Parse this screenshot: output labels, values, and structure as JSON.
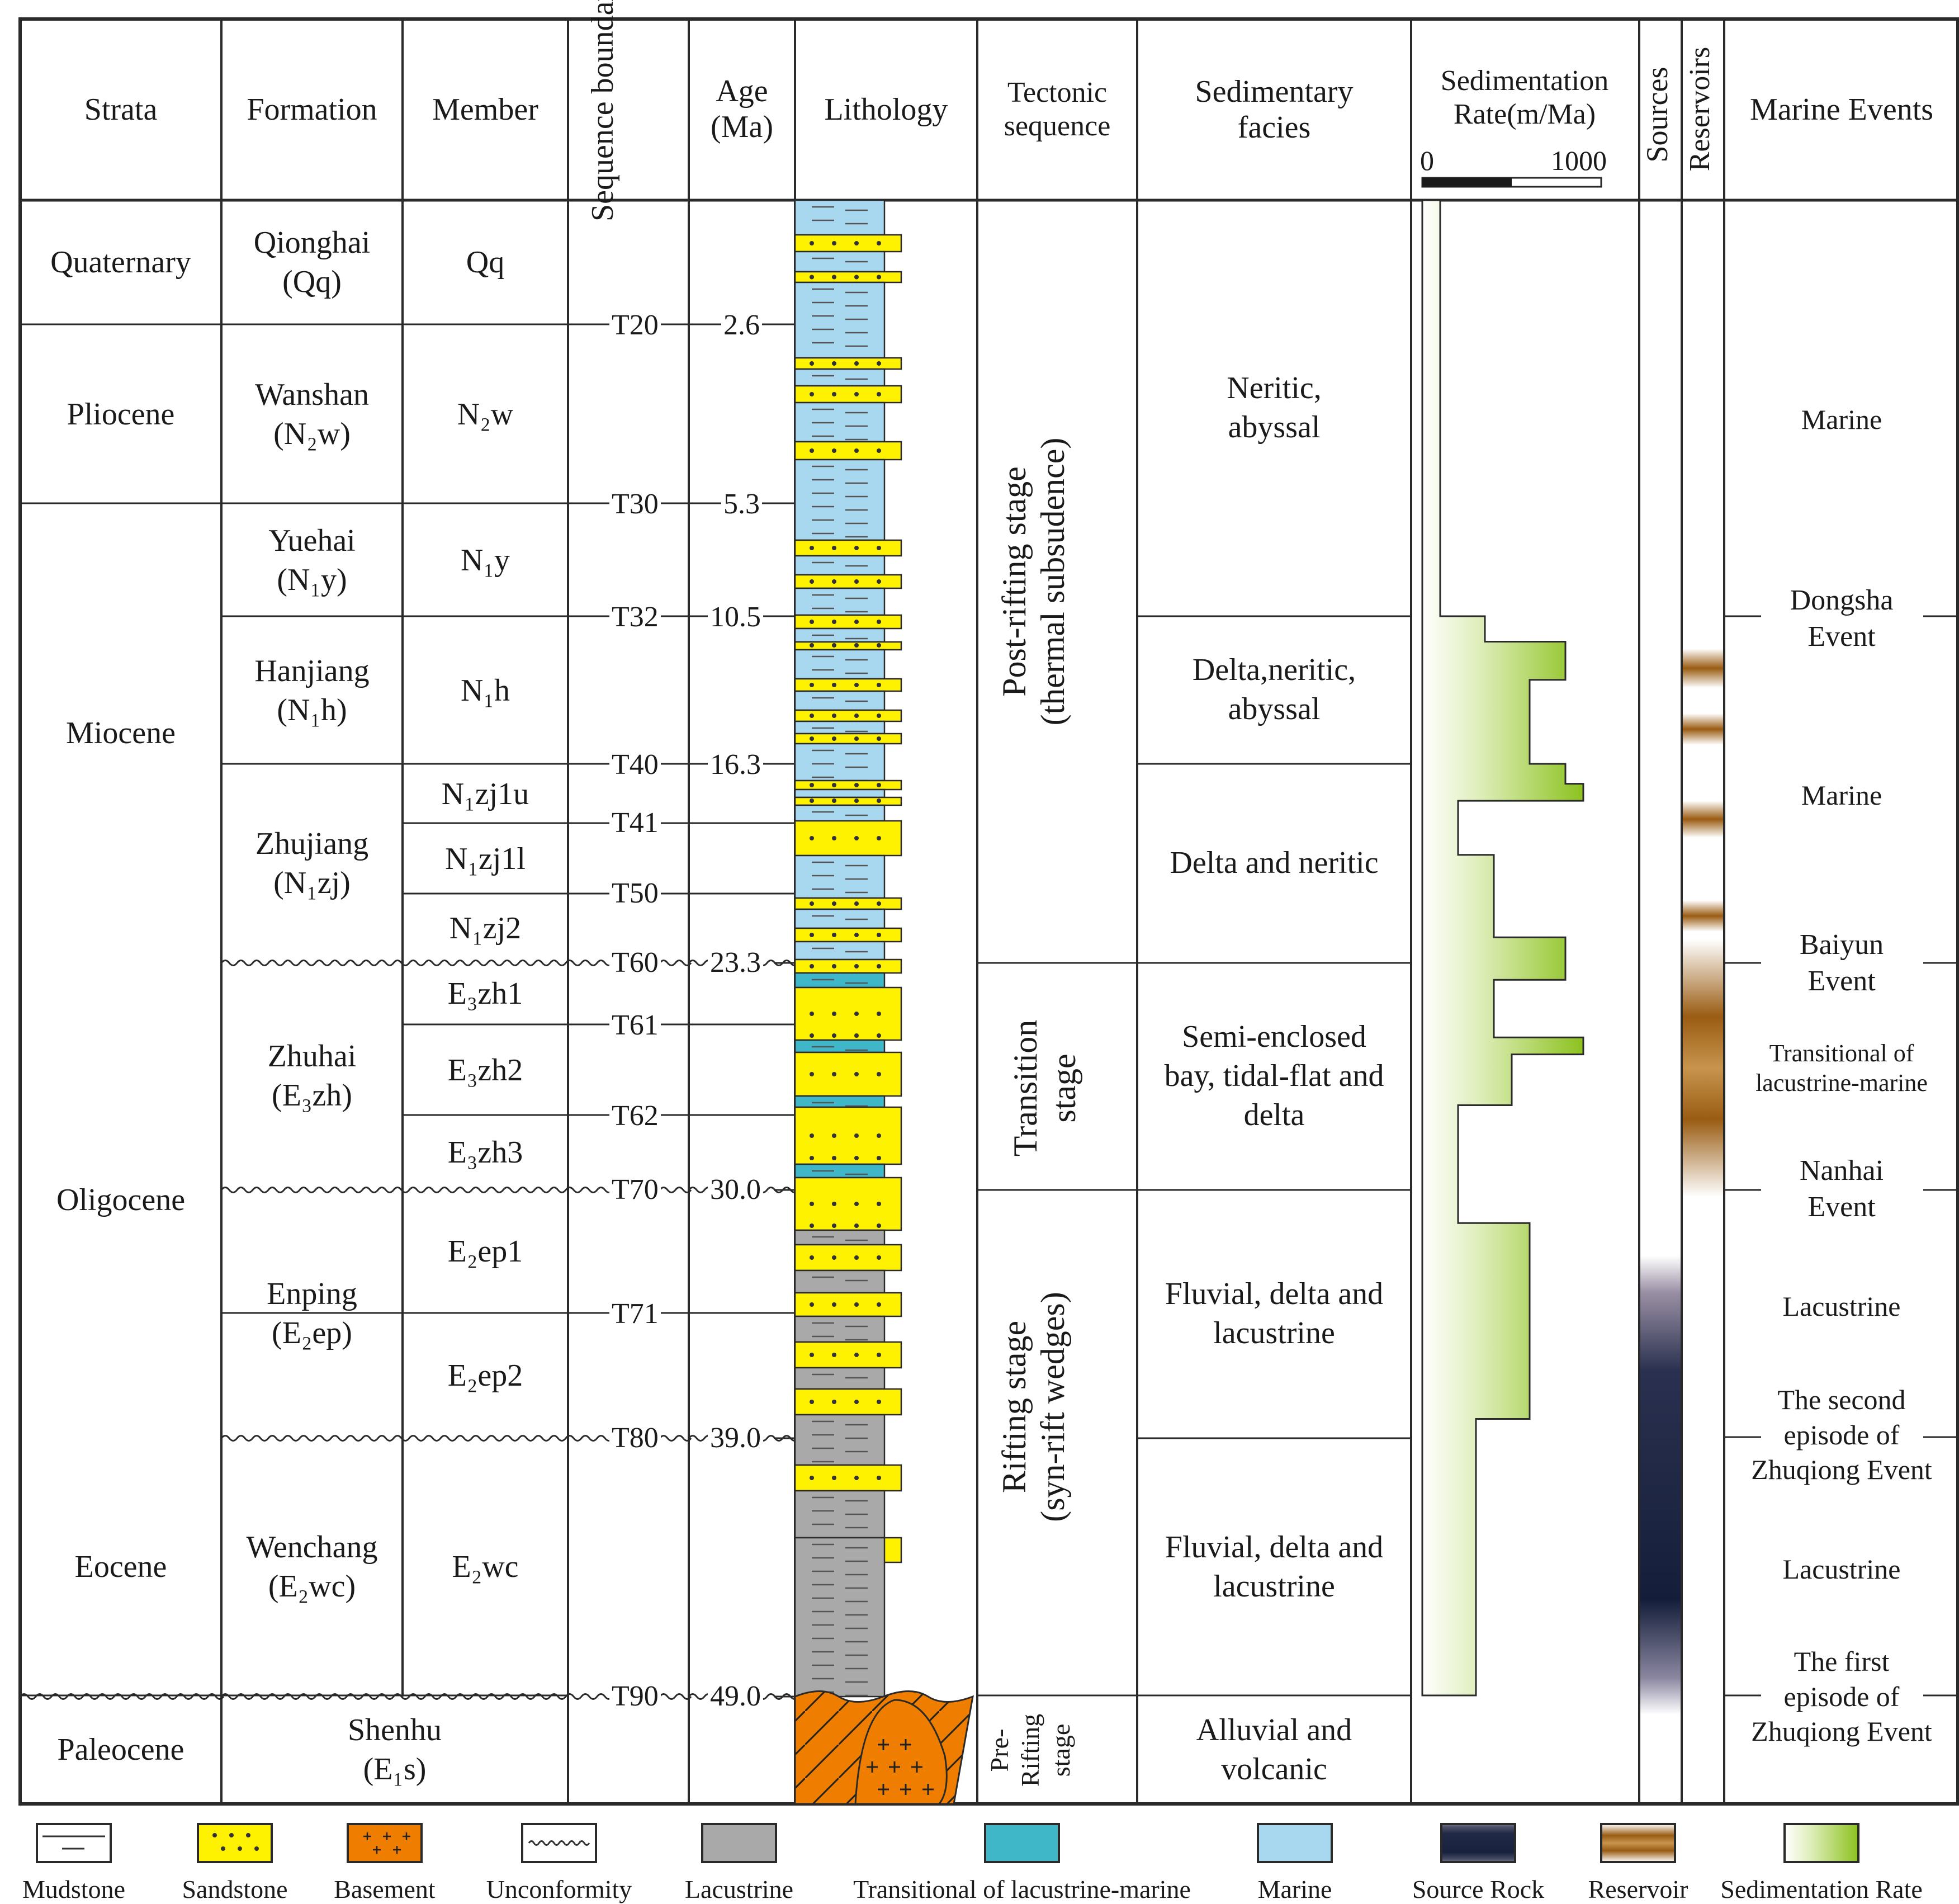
{
  "headers": {
    "strata": "Strata",
    "formation": "Formation",
    "member": "Member",
    "sequence_boundary": "Sequence boundary",
    "age": "Age (Ma)",
    "lithology": "Lithology",
    "tectonic_sequence": "Tectonic sequence",
    "sedimentary_facies": "Sedimentary facies",
    "sedimentation_rate": "Sedimentation Rate(m/Ma)",
    "rate_scale_min": "0",
    "rate_scale_max": "1000",
    "sources": "Sources",
    "reservoirs": "Reservoirs",
    "marine_events": "Marine Events"
  },
  "strata": [
    "Quaternary",
    "Pliocene",
    "Miocene",
    "Oligocene",
    "Eocene",
    "Paleocene"
  ],
  "formations": [
    {
      "name": "Qionghai",
      "code": "(Qq)"
    },
    {
      "name": "Wanshan",
      "code": "(N₂w)"
    },
    {
      "name": "Yuehai",
      "code": "(N₁y)"
    },
    {
      "name": "Hanjiang",
      "code": "(N₁h)"
    },
    {
      "name": "Zhujiang",
      "code": "(N₁zj)"
    },
    {
      "name": "Zhuhai",
      "code": "(E₃zh)"
    },
    {
      "name": "Enping",
      "code": "(E₂ep)"
    },
    {
      "name": "Wenchang",
      "code": "(E₂wc)"
    },
    {
      "name": "Shenhu",
      "code": "(E₁s)"
    }
  ],
  "members": [
    "Qq",
    "N₂w",
    "N₁y",
    "N₁h",
    "N₁zj1u",
    "N₁zj1l",
    "N₁zj2",
    "E₃zh1",
    "E₃zh2",
    "E₃zh3",
    "E₂ep1",
    "E₂ep2",
    "E₂wc"
  ],
  "boundaries": [
    {
      "label": "T20",
      "age": "2.6",
      "unconformity": false
    },
    {
      "label": "T30",
      "age": "5.3",
      "unconformity": false
    },
    {
      "label": "T32",
      "age": "10.5",
      "unconformity": false
    },
    {
      "label": "T40",
      "age": "16.3",
      "unconformity": false
    },
    {
      "label": "T41",
      "age": "",
      "unconformity": false
    },
    {
      "label": "T50",
      "age": "",
      "unconformity": false
    },
    {
      "label": "T60",
      "age": "23.3",
      "unconformity": true
    },
    {
      "label": "T61",
      "age": "",
      "unconformity": false
    },
    {
      "label": "T62",
      "age": "",
      "unconformity": false
    },
    {
      "label": "T70",
      "age": "30.0",
      "unconformity": true
    },
    {
      "label": "T71",
      "age": "",
      "unconformity": false
    },
    {
      "label": "T80",
      "age": "39.0",
      "unconformity": true
    },
    {
      "label": "T90",
      "age": "49.0",
      "unconformity": true
    }
  ],
  "tectonic": [
    {
      "line1": "Post-rifting stage",
      "line2": "(thermal subsudence)"
    },
    {
      "line1": "Transition",
      "line2": "stage"
    },
    {
      "line1": "Rifting stage",
      "line2": "(syn-rift wedges)"
    },
    {
      "line1": "Pre-",
      "line2": "Rifting",
      "line3": "stage"
    }
  ],
  "facies": [
    {
      "lines": [
        "Neritic,",
        "abyssal"
      ]
    },
    {
      "lines": [
        "Delta,neritic,",
        "abyssal"
      ]
    },
    {
      "lines": [
        "Delta and neritic"
      ]
    },
    {
      "lines": [
        "Semi-enclosed",
        "bay, tidal-flat and",
        "delta"
      ]
    },
    {
      "lines": [
        "Fluvial, delta and",
        "lacustrine"
      ]
    },
    {
      "lines": [
        "Fluvial, delta and",
        "lacustrine"
      ]
    },
    {
      "lines": [
        "Alluvial and",
        "volcanic"
      ]
    }
  ],
  "sedimentation_rate_m_per_ma": [
    {
      "from_ma": 0,
      "to_ma": 10.5,
      "rate": 100
    },
    {
      "from_ma": 10.5,
      "to_ma": 11.5,
      "rate": 350
    },
    {
      "from_ma": 11.5,
      "to_ma": 13.0,
      "rate": 800
    },
    {
      "from_ma": 13.0,
      "to_ma": 16.3,
      "rate": 600
    },
    {
      "from_ma": 16.3,
      "to_ma": 17.0,
      "rate": 800
    },
    {
      "from_ma": 17.0,
      "to_ma": 17.6,
      "rate": 900
    },
    {
      "from_ma": 17.6,
      "to_ma": 19.5,
      "rate": 200
    },
    {
      "from_ma": 19.5,
      "to_ma": 22.4,
      "rate": 400
    },
    {
      "from_ma": 22.4,
      "to_ma": 23.8,
      "rate": 800
    },
    {
      "from_ma": 23.8,
      "to_ma": 25.5,
      "rate": 400
    },
    {
      "from_ma": 25.5,
      "to_ma": 26.0,
      "rate": 900
    },
    {
      "from_ma": 26.0,
      "to_ma": 27.5,
      "rate": 500
    },
    {
      "from_ma": 27.5,
      "to_ma": 31.2,
      "rate": 200
    },
    {
      "from_ma": 31.2,
      "to_ma": 38.3,
      "rate": 600
    },
    {
      "from_ma": 38.3,
      "to_ma": 49.0,
      "rate": 300
    }
  ],
  "marine_events": [
    {
      "lines": [
        "Marine"
      ],
      "kind": "label"
    },
    {
      "lines": [
        "Dongsha",
        "Event"
      ],
      "kind": "event"
    },
    {
      "lines": [
        "Marine"
      ],
      "kind": "label"
    },
    {
      "lines": [
        "Baiyun",
        "Event"
      ],
      "kind": "event"
    },
    {
      "lines": [
        "Transitional of",
        "lacustrine-marine"
      ],
      "kind": "label"
    },
    {
      "lines": [
        "Nanhai",
        "Event"
      ],
      "kind": "event"
    },
    {
      "lines": [
        "Lacustrine"
      ],
      "kind": "label"
    },
    {
      "lines": [
        "The second",
        "episode of",
        "Zhuqiong Event"
      ],
      "kind": "event"
    },
    {
      "lines": [
        "Lacustrine"
      ],
      "kind": "label"
    },
    {
      "lines": [
        "The first",
        "episode of",
        "Zhuqiong Event"
      ],
      "kind": "event"
    }
  ],
  "legend": [
    {
      "label": "Mudstone",
      "swatch": "mudstone"
    },
    {
      "label": "Sandstone",
      "swatch": "sandstone"
    },
    {
      "label": "Basement",
      "swatch": "basement"
    },
    {
      "label": "Unconformity",
      "swatch": "unconformity"
    },
    {
      "label": "Lacustrine",
      "swatch": "lacustrine"
    },
    {
      "label": "Transitional of lacustrine-marine",
      "swatch": "transitional"
    },
    {
      "label": "Marine",
      "swatch": "marine"
    },
    {
      "label": "Source Rock",
      "swatch": "source"
    },
    {
      "label": "Reservoir",
      "swatch": "reservoir"
    },
    {
      "label": "Sedimentation Rate",
      "swatch": "rate"
    }
  ],
  "colors": {
    "sandstone": "#fff200",
    "marine": "#a8d8f0",
    "lacustrine": "#a9a9a9",
    "transitional": "#3fb7c9",
    "basement": "#ee7d00",
    "rate_green": "#9ccd2c",
    "source_dark": "#1b2540",
    "reservoir_brown": "#9a5c12"
  }
}
